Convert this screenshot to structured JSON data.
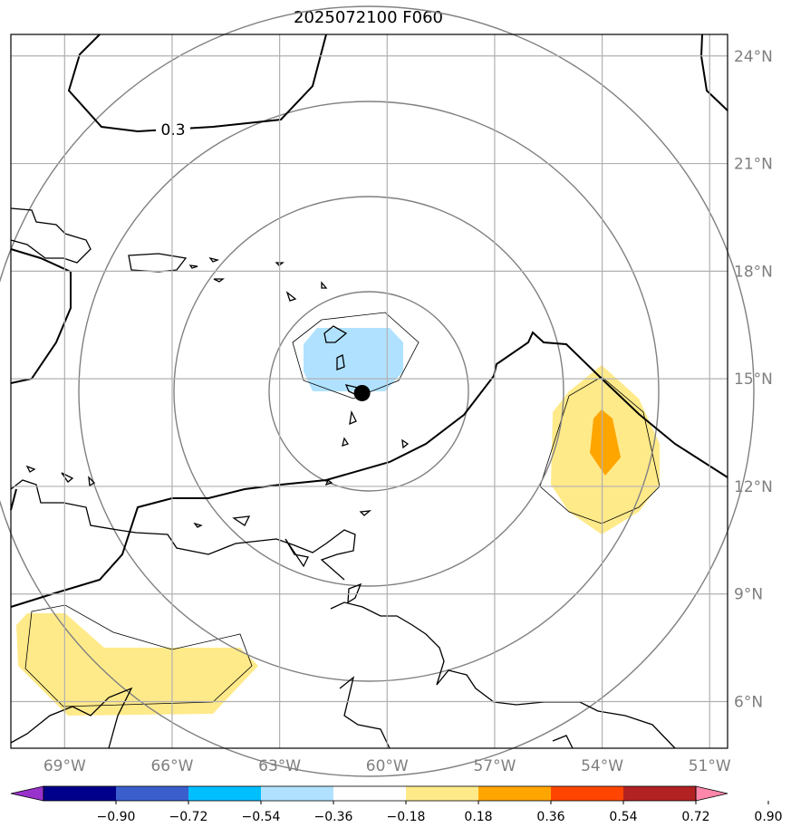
{
  "title": "2025072100 F060",
  "map": {
    "lon_range": [
      -70.5,
      -50.5
    ],
    "lat_range": [
      4.7,
      24.6
    ],
    "lon_ticks": [
      {
        "value": -69,
        "label": "69°W"
      },
      {
        "value": -66,
        "label": "66°W"
      },
      {
        "value": -63,
        "label": "63°W"
      },
      {
        "value": -60,
        "label": "60°W"
      },
      {
        "value": -57,
        "label": "57°W"
      },
      {
        "value": -54,
        "label": "54°W"
      },
      {
        "value": -51,
        "label": "51°W"
      }
    ],
    "lat_ticks": [
      {
        "value": 24,
        "label": "24°N"
      },
      {
        "value": 21,
        "label": "21°N"
      },
      {
        "value": 18,
        "label": "18°N"
      },
      {
        "value": 15,
        "label": "15°N"
      },
      {
        "value": 12,
        "label": "12°N"
      },
      {
        "value": 9,
        "label": "9°N"
      },
      {
        "value": 6,
        "label": "6°N"
      }
    ],
    "contour_label": "0.3",
    "storm_center": {
      "lon": -60.7,
      "lat": 14.6
    },
    "range_rings": "concentric distance circles around storm center"
  },
  "colorbar": {
    "colors": [
      "#9932cc",
      "#00008b",
      "#3a5fcd",
      "#00bfff",
      "#b0e2ff",
      "#ffffff",
      "#ffea8a",
      "#ffa500",
      "#ff4500",
      "#b22222",
      "#ff88aa"
    ],
    "labels": [
      "−0.90",
      "−0.72",
      "−0.54",
      "−0.36",
      "−0.18",
      "0.18",
      "0.36",
      "0.54",
      "0.72",
      "0.90"
    ]
  },
  "colors": {
    "positive_fill": "#ffea8a",
    "positive_strong": "#ffa500",
    "negative_fill": "#b0e2ff",
    "grid": "#b0b0b0",
    "rings": "#808080"
  }
}
